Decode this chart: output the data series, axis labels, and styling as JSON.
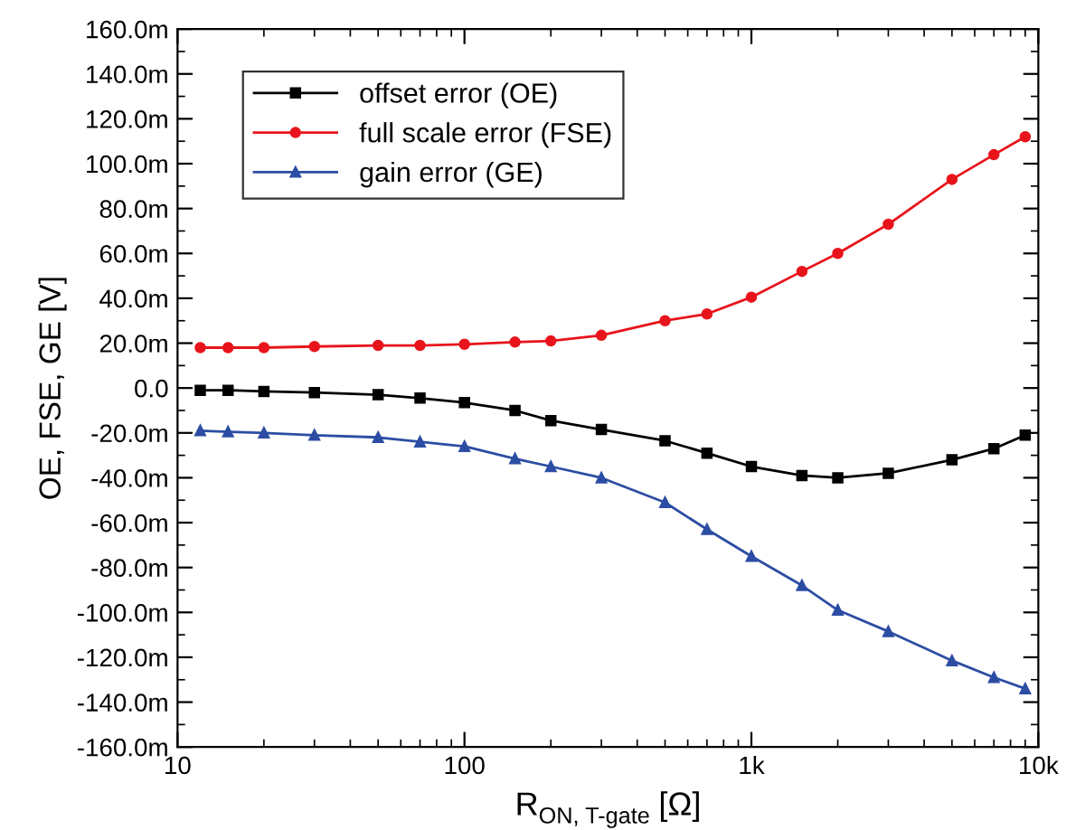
{
  "chart_data": {
    "type": "line",
    "xlabel": "R$_{ON, T-gate}$ [Ω]",
    "ylabel": "OE, FSE, GE [V]",
    "log": "x",
    "grid": false,
    "legend": "top left",
    "line_style": "solid",
    "x": [
      12,
      15,
      20,
      30,
      50,
      70,
      100,
      150,
      200,
      300,
      500,
      700,
      1000,
      1500,
      2000,
      3000,
      5000,
      7000,
      9000
    ],
    "series": [
      {
        "name": "offset error (OE)",
        "color": "#000000",
        "marker": "square",
        "values": [
          -1,
          -1,
          -1.5,
          -2,
          -3,
          -4.5,
          -6.5,
          -10,
          -14.5,
          -18.5,
          -23.5,
          -29,
          -35,
          -39,
          -40,
          -38,
          -32,
          -27,
          -21
        ]
      },
      {
        "name": "full scale error (FSE)",
        "color": "#e8141b",
        "marker": "circle",
        "values": [
          18,
          18,
          18,
          18.5,
          19,
          19,
          19.5,
          20.5,
          21,
          23.5,
          30,
          33,
          40.5,
          52,
          60,
          73,
          93,
          104,
          112
        ]
      },
      {
        "name": "gain error (GE)",
        "color": "#2c4da3",
        "marker": "triangle",
        "values": [
          -19,
          -19.5,
          -20,
          -21,
          -22,
          -24,
          -26,
          -31.5,
          -35,
          -40,
          -51,
          -63,
          -75,
          -88,
          -99,
          -108.5,
          -121.5,
          -129,
          -134
        ]
      }
    ],
    "xlim": [
      10,
      10000
    ],
    "xticks": [
      10,
      100,
      {
        "value": 1000,
        "label": "1k"
      },
      {
        "value": 10000,
        "label": "10k"
      }
    ],
    "ylim": [
      -160,
      160
    ],
    "yticks": [
      {
        "value": -160,
        "label": "-160.0m"
      },
      {
        "value": -140,
        "label": "-140.0m"
      },
      {
        "value": -120,
        "label": "-120.0m"
      },
      {
        "value": -100,
        "label": "-100.0m"
      },
      {
        "value": -80,
        "label": "-80.0m"
      },
      {
        "value": -60,
        "label": "-60.0m"
      },
      {
        "value": -40,
        "label": "-40.0m"
      },
      {
        "value": -20,
        "label": "-20.0m"
      },
      {
        "value": 0,
        "label": "0.0"
      },
      {
        "value": 20,
        "label": "20.0m"
      },
      {
        "value": 40,
        "label": "40.0m"
      },
      {
        "value": 60,
        "label": "60.0m"
      },
      {
        "value": 80,
        "label": "80.0m"
      },
      {
        "value": 100,
        "label": "100.0m"
      },
      {
        "value": 120,
        "label": "120.0m"
      },
      {
        "value": 140,
        "label": "140.0m"
      },
      {
        "value": 160,
        "label": "160.0m"
      }
    ]
  }
}
